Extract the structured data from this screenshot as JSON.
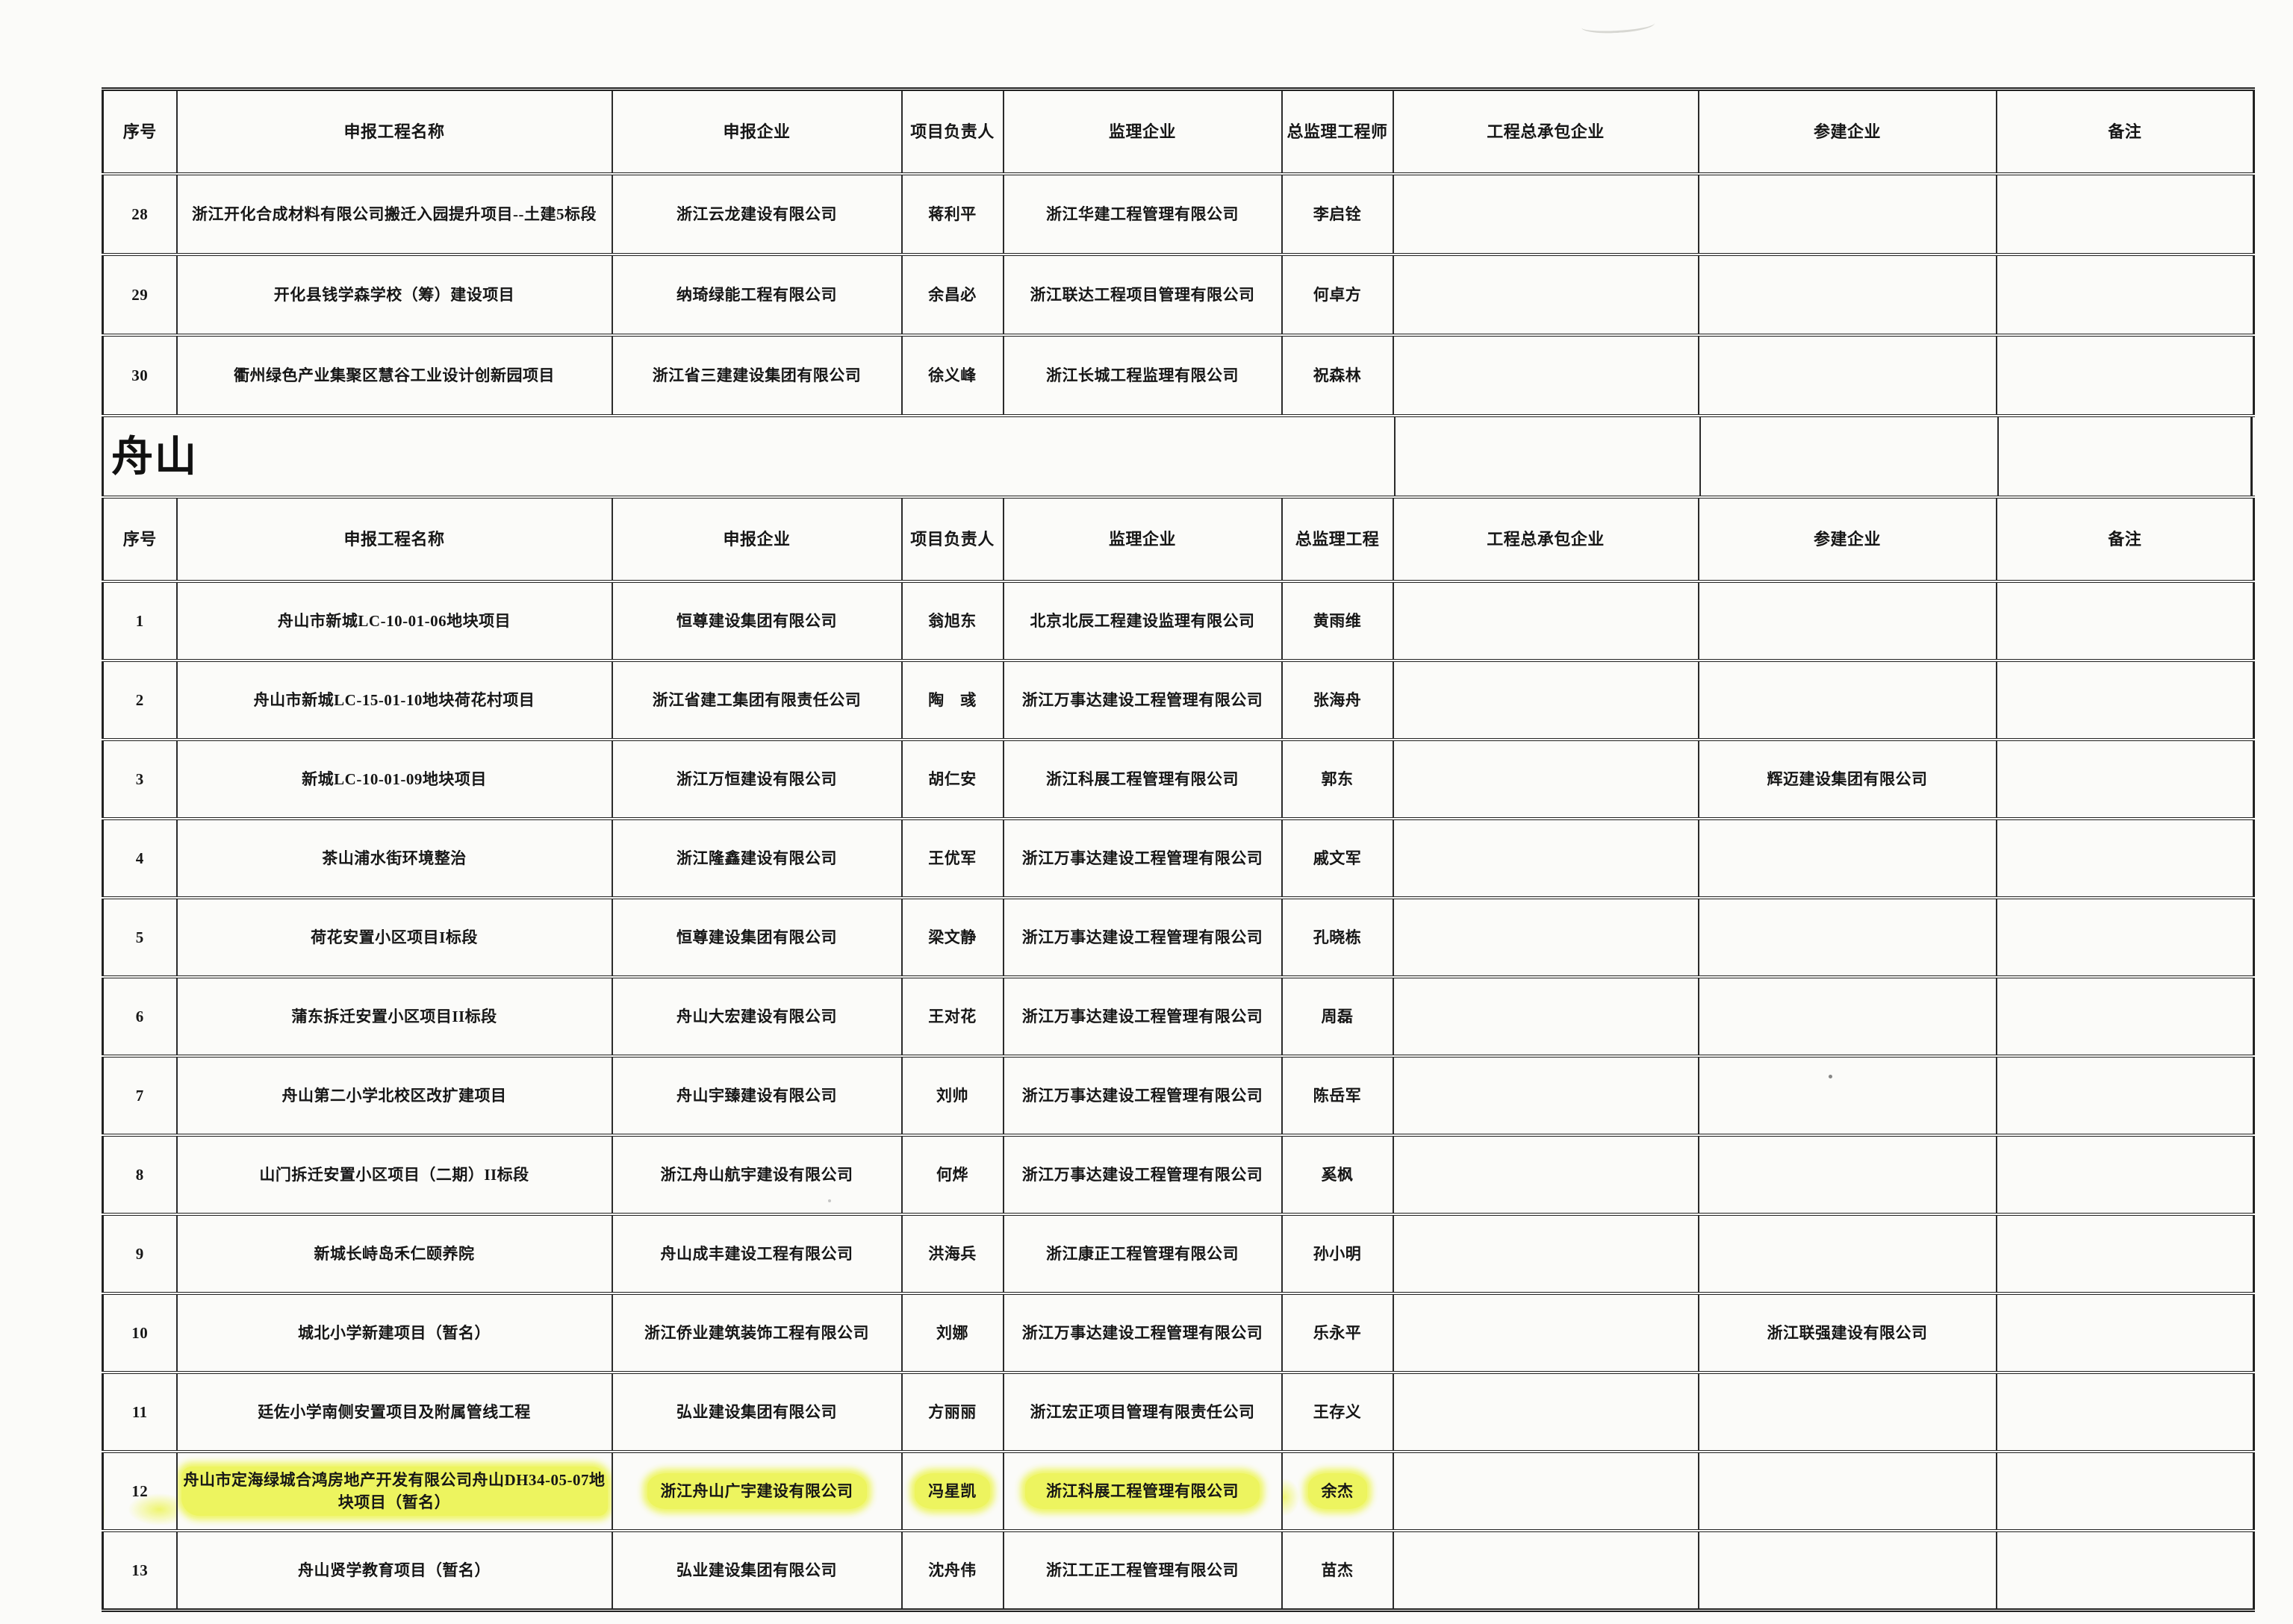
{
  "section": {
    "title": "舟山"
  },
  "highlight_color": "#edf45f",
  "table1": {
    "headers": [
      "序号",
      "申报工程名称",
      "申报企业",
      "项目负责人",
      "监理企业",
      "总监理工程师",
      "工程总承包企业",
      "参建企业",
      "备注"
    ],
    "rows": [
      {
        "no": "28",
        "project": "浙江开化合成材料有限公司搬迁入园提升项目--土建5标段",
        "applicant": "浙江云龙建设有限公司",
        "manager": "蒋利平",
        "supervisor": "浙江华建工程管理有限公司",
        "chief": "李启铨",
        "contractor": "",
        "participants": "",
        "remark": ""
      },
      {
        "no": "29",
        "project": "开化县钱学森学校（筹）建设项目",
        "applicant": "纳琦绿能工程有限公司",
        "manager": "余昌必",
        "supervisor": "浙江联达工程项目管理有限公司",
        "chief": "何卓方",
        "contractor": "",
        "participants": "",
        "remark": ""
      },
      {
        "no": "30",
        "project": "衢州绿色产业集聚区慧谷工业设计创新园项目",
        "applicant": "浙江省三建建设集团有限公司",
        "manager": "徐义峰",
        "supervisor": "浙江长城工程监理有限公司",
        "chief": "祝森林",
        "contractor": "",
        "participants": "",
        "remark": ""
      }
    ]
  },
  "table2": {
    "headers": [
      "序号",
      "申报工程名称",
      "申报企业",
      "项目负责人",
      "监理企业",
      "总监理工程",
      "工程总承包企业",
      "参建企业",
      "备注"
    ],
    "rows": [
      {
        "no": "1",
        "project": "舟山市新城LC-10-01-06地块项目",
        "applicant": "恒尊建设集团有限公司",
        "manager": "翁旭东",
        "supervisor": "北京北辰工程建设监理有限公司",
        "chief": "黄雨维",
        "contractor": "",
        "participants": "",
        "remark": ""
      },
      {
        "no": "2",
        "project": "舟山市新城LC-15-01-10地块荷花村项目",
        "applicant": "浙江省建工集团有限责任公司",
        "manager": "陶　彧",
        "supervisor": "浙江万事达建设工程管理有限公司",
        "chief": "张海舟",
        "contractor": "",
        "participants": "",
        "remark": ""
      },
      {
        "no": "3",
        "project": "新城LC-10-01-09地块项目",
        "applicant": "浙江万恒建设有限公司",
        "manager": "胡仁安",
        "supervisor": "浙江科展工程管理有限公司",
        "chief": "郭东",
        "contractor": "",
        "participants": "辉迈建设集团有限公司",
        "remark": ""
      },
      {
        "no": "4",
        "project": "茶山浦水街环境整治",
        "applicant": "浙江隆鑫建设有限公司",
        "manager": "王优军",
        "supervisor": "浙江万事达建设工程管理有限公司",
        "chief": "戚文军",
        "contractor": "",
        "participants": "",
        "remark": ""
      },
      {
        "no": "5",
        "project": "荷花安置小区项目I标段",
        "applicant": "恒尊建设集团有限公司",
        "manager": "梁文静",
        "supervisor": "浙江万事达建设工程管理有限公司",
        "chief": "孔晓栋",
        "contractor": "",
        "participants": "",
        "remark": ""
      },
      {
        "no": "6",
        "project": "蒲东拆迁安置小区项目II标段",
        "applicant": "舟山大宏建设有限公司",
        "manager": "王对花",
        "supervisor": "浙江万事达建设工程管理有限公司",
        "chief": "周磊",
        "contractor": "",
        "participants": "",
        "remark": ""
      },
      {
        "no": "7",
        "project": "舟山第二小学北校区改扩建项目",
        "applicant": "舟山宇臻建设有限公司",
        "manager": "刘帅",
        "supervisor": "浙江万事达建设工程管理有限公司",
        "chief": "陈岳军",
        "contractor": "",
        "participants": "",
        "remark": ""
      },
      {
        "no": "8",
        "project": "山门拆迁安置小区项目（二期）II标段",
        "applicant": "浙江舟山航宇建设有限公司",
        "manager": "何烨",
        "supervisor": "浙江万事达建设工程管理有限公司",
        "chief": "奚枫",
        "contractor": "",
        "participants": "",
        "remark": ""
      },
      {
        "no": "9",
        "project": "新城长峙岛禾仁颐养院",
        "applicant": "舟山成丰建设工程有限公司",
        "manager": "洪海兵",
        "supervisor": "浙江康正工程管理有限公司",
        "chief": "孙小明",
        "contractor": "",
        "participants": "",
        "remark": ""
      },
      {
        "no": "10",
        "project": "城北小学新建项目（暂名）",
        "applicant": "浙江侨业建筑装饰工程有限公司",
        "manager": "刘娜",
        "supervisor": "浙江万事达建设工程管理有限公司",
        "chief": "乐永平",
        "contractor": "",
        "participants": "浙江联强建设有限公司",
        "remark": ""
      },
      {
        "no": "11",
        "project": "廷佐小学南侧安置项目及附属管线工程",
        "applicant": "弘业建设集团有限公司",
        "manager": "方丽丽",
        "supervisor": "浙江宏正项目管理有限责任公司",
        "chief": "王存义",
        "contractor": "",
        "participants": "",
        "remark": ""
      },
      {
        "no": "12",
        "project": "舟山市定海绿城合鸿房地产开发有限公司舟山DH34-05-07地块项目（暂名）",
        "applicant": "浙江舟山广宇建设有限公司",
        "manager": "冯星凯",
        "supervisor": "浙江科展工程管理有限公司",
        "chief": "余杰",
        "contractor": "",
        "participants": "",
        "remark": "",
        "highlight": true
      },
      {
        "no": "13",
        "project": "舟山贤学教育项目（暂名）",
        "applicant": "弘业建设集团有限公司",
        "manager": "沈舟伟",
        "supervisor": "浙江工正工程管理有限公司",
        "chief": "苗杰",
        "contractor": "",
        "participants": "",
        "remark": ""
      }
    ]
  }
}
